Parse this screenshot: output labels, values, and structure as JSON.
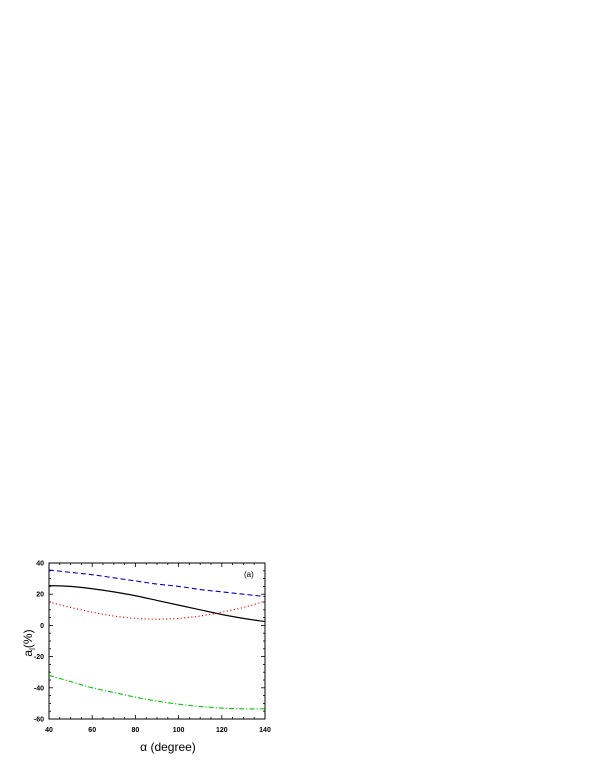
{
  "chart_data": {
    "type": "line",
    "title": "",
    "xlabel": "α (degree)",
    "ylabel": "a",
    "ylabel_subscript": "l",
    "ylabel_suffix": "(%)",
    "panel_label": "(a)",
    "xlim": [
      40,
      140
    ],
    "ylim": [
      -60,
      40
    ],
    "x_ticks": [
      40,
      60,
      80,
      100,
      120,
      140
    ],
    "y_ticks": [
      40,
      20,
      0,
      -20,
      -40,
      -60
    ],
    "grid": false,
    "legend": "none",
    "x": [
      40,
      50,
      60,
      70,
      80,
      90,
      100,
      110,
      120,
      130,
      140
    ],
    "series": [
      {
        "color": "#000000",
        "style": "solid",
        "values": [
          25.5,
          25.0,
          23.5,
          21.5,
          19.0,
          16.0,
          13.0,
          10.0,
          7.0,
          4.5,
          2.5
        ]
      },
      {
        "color": "#0000cc",
        "style": "dashed",
        "values": [
          35.5,
          34.0,
          32.5,
          30.5,
          28.5,
          26.5,
          25.0,
          23.0,
          21.5,
          20.0,
          18.5
        ]
      },
      {
        "color": "#ff0000",
        "style": "dotted",
        "values": [
          15.0,
          11.5,
          8.5,
          6.0,
          4.5,
          4.0,
          4.5,
          6.0,
          8.5,
          11.5,
          15.5
        ]
      },
      {
        "color": "#00cc00",
        "style": "dash-dot",
        "values": [
          -32.0,
          -36.0,
          -40.0,
          -43.0,
          -46.0,
          -48.5,
          -50.5,
          -52.0,
          -53.0,
          -53.5,
          -53.5
        ]
      }
    ]
  }
}
